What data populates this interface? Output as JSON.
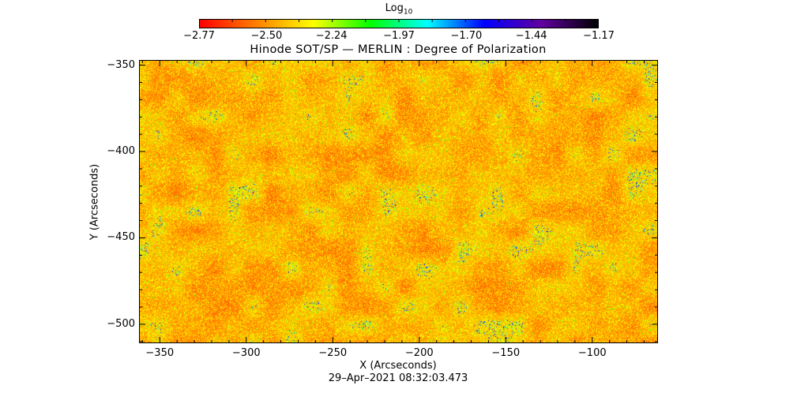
{
  "chart_data": {
    "type": "heatmap",
    "title": "Hinode SOT/SP — MERLIN : Degree of Polarization",
    "xlabel": "X (Arcseconds)",
    "ylabel": "Y (Arcseconds)",
    "xlim": [
      -362,
      -62
    ],
    "ylim": [
      -511,
      -347
    ],
    "xticks": [
      -350,
      -300,
      -250,
      -200,
      -150,
      -100
    ],
    "xtick_labels": [
      "−350",
      "−300",
      "−250",
      "−200",
      "−150",
      "−100"
    ],
    "yticks": [
      -350,
      -400,
      -450,
      -500
    ],
    "ytick_labels": [
      "−350",
      "−400",
      "−450",
      "−500"
    ],
    "colorbar": {
      "title": "Log",
      "title_sub": "10",
      "range": [
        -2.77,
        -1.17
      ],
      "ticks": [
        -2.77,
        -2.5,
        -2.24,
        -1.97,
        -1.7,
        -1.44,
        -1.17
      ],
      "tick_labels": [
        "−2.77",
        "−2.50",
        "−2.24",
        "−1.97",
        "−1.70",
        "−1.44",
        "−1.17"
      ],
      "colors": [
        "#ff0000",
        "#ff8000",
        "#ffff00",
        "#00ff00",
        "#00ffff",
        "#0000ff",
        "#6000a0",
        "#000000"
      ]
    },
    "typical_value_range": [
      -2.7,
      -2.2
    ]
  },
  "timestamp": "29–Apr–2021 08:32:03.473"
}
